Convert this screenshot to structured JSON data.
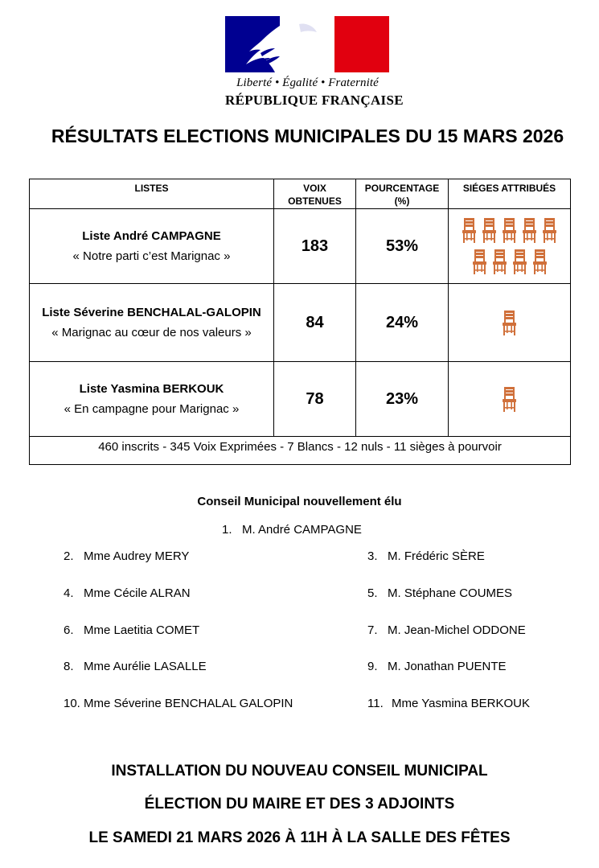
{
  "logo": {
    "motto": "Liberté • Égalité • Fraternité",
    "republic": "RÉPUBLIQUE FRANÇAISE",
    "colors": {
      "blue": "#000091",
      "white": "#ffffff",
      "red": "#e1000f"
    }
  },
  "title": "RÉSULTATS ELECTIONS MUNICIPALES DU 15 MARS 2026",
  "results": {
    "headers": {
      "lists": "LISTES",
      "votes_line1": "VOIX",
      "votes_line2": "OBTENUES",
      "percent_line1": "POURCENTAGE",
      "percent_line2": "(%)",
      "seats": "SIÉGES ATTRIBUÉS"
    },
    "rows": [
      {
        "name": "Liste André CAMPAGNE",
        "slogan": "« Notre parti c’est Marignac »",
        "votes": "183",
        "percent": "53%",
        "seats": 9
      },
      {
        "name": "Liste Séverine BENCHALAL-GALOPIN",
        "slogan": "« Marignac au cœur de nos valeurs »",
        "votes": "84",
        "percent": "24%",
        "seats": 1
      },
      {
        "name": "Liste Yasmina BERKOUK",
        "slogan": "« En campagne pour Marignac »",
        "votes": "78",
        "percent": "23%",
        "seats": 1
      }
    ],
    "footer": "460 inscrits - 345 Voix Exprimées - 7 Blancs - 12 nuls - 11 sièges à pourvoir",
    "seat_icon": "chair-icon",
    "seat_color": "#d0703a"
  },
  "council": {
    "title": "Conseil Municipal nouvellement élu",
    "members": [
      {
        "num": "1.",
        "name": "M. André CAMPAGNE"
      },
      {
        "num": "2.",
        "name": "Mme Audrey MERY"
      },
      {
        "num": "3.",
        "name": "M. Frédéric SÈRE"
      },
      {
        "num": "4.",
        "name": "Mme Cécile ALRAN"
      },
      {
        "num": "5.",
        "name": "M. Stéphane COUMES"
      },
      {
        "num": "6.",
        "name": "Mme Laetitia COMET"
      },
      {
        "num": "7.",
        "name": "M. Jean-Michel ODDONE"
      },
      {
        "num": "8.",
        "name": "Mme Aurélie LASALLE"
      },
      {
        "num": "9.",
        "name": "M. Jonathan PUENTE"
      },
      {
        "num": "10.",
        "name": "Mme Séverine BENCHALAL GALOPIN"
      },
      {
        "num": "11.",
        "name": "Mme Yasmina BERKOUK"
      }
    ]
  },
  "announcement": {
    "line1": "INSTALLATION DU NOUVEAU CONSEIL MUNICIPAL",
    "line2": "ÉLECTION DU MAIRE ET DES 3 ADJOINTS",
    "line3": "LE SAMEDI 21 MARS 2026 À 11H À LA SALLE DES FÊTES"
  }
}
